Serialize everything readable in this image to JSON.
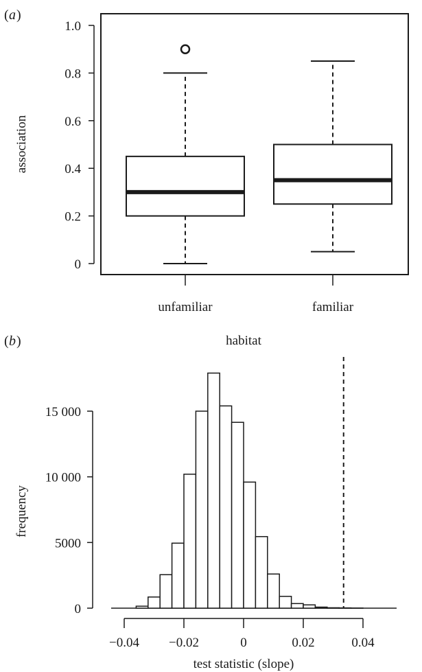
{
  "chart_data": [
    {
      "panel_label": "a",
      "type": "box",
      "title": "",
      "xlabel": "",
      "ylabel": "association",
      "ylim": [
        0,
        1.0
      ],
      "yticks": [
        0,
        0.2,
        0.4,
        0.6,
        0.8,
        1.0
      ],
      "ytick_labels": [
        "0",
        "0.2",
        "0.4",
        "0.6",
        "0.8",
        "1.0"
      ],
      "categories": [
        "unfamiliar",
        "familiar"
      ],
      "boxes": [
        {
          "category": "unfamiliar",
          "min": 0.0,
          "q1": 0.2,
          "median": 0.3,
          "q3": 0.45,
          "max": 0.8,
          "outliers": [
            0.9
          ]
        },
        {
          "category": "familiar",
          "min": 0.05,
          "q1": 0.25,
          "median": 0.35,
          "q3": 0.5,
          "max": 0.85,
          "outliers": []
        }
      ],
      "grid": false
    },
    {
      "panel_label": "b",
      "type": "bar",
      "subtype": "histogram",
      "title": "habitat",
      "xlabel": "test statistic (slope)",
      "ylabel": "frequency",
      "xlim": [
        -0.045,
        0.045
      ],
      "ylim": [
        0,
        18000
      ],
      "xticks": [
        -0.04,
        -0.02,
        0,
        0.02,
        0.04
      ],
      "xtick_labels": [
        "−0.04",
        "−0.02",
        "0",
        "0.02",
        "0.04"
      ],
      "yticks": [
        0,
        5000,
        10000,
        15000
      ],
      "ytick_labels": [
        "0",
        "5000",
        "10 000",
        "15 000"
      ],
      "bin_width": 0.004,
      "bin_edges": [
        -0.036,
        -0.032,
        -0.028,
        -0.024,
        -0.02,
        -0.016,
        -0.012,
        -0.008,
        -0.004,
        0,
        0.004,
        0.008,
        0.012,
        0.016,
        0.02,
        0.024,
        0.028,
        0.032,
        0.036,
        0.04
      ],
      "values": [
        150,
        850,
        2550,
        4950,
        10200,
        15000,
        17900,
        15400,
        14150,
        9600,
        5450,
        2600,
        900,
        350,
        250,
        80,
        30,
        20,
        10
      ],
      "observed_line": 0.0335,
      "observed_line_style": "dashed",
      "grid": false
    }
  ]
}
